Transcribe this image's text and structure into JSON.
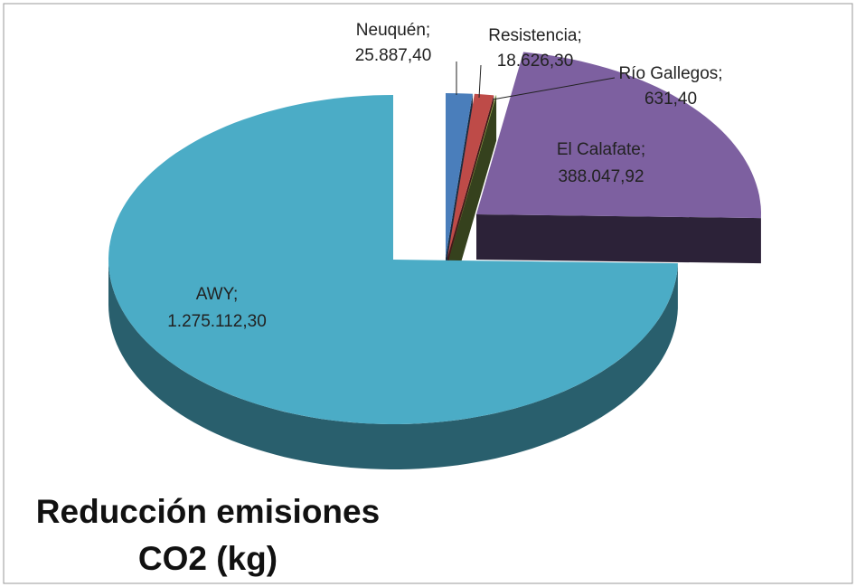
{
  "chart_data": {
    "type": "pie",
    "title": "Reducción emisiones CO2 (kg)",
    "categories": [
      "Neuquén;",
      "Resistencia;",
      "Río Gallegos;",
      "El Calafate;",
      "AWY;"
    ],
    "values": [
      25887.4,
      18626.3,
      631.4,
      388047.92,
      1275112.3
    ],
    "value_labels": [
      "25.887,40",
      "18.626,30",
      "631,40",
      "388.047,92",
      "1.275.112,30"
    ],
    "colors": [
      "#4a7ebb",
      "#be4b48",
      "#98b954",
      "#7d60a0",
      "#4bacc6"
    ]
  }
}
